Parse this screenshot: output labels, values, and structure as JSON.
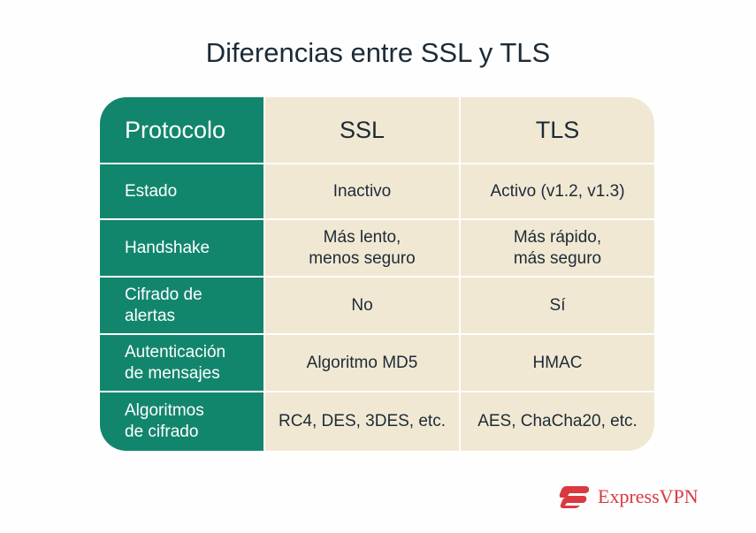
{
  "title": "Diferencias entre SSL y TLS",
  "table": {
    "header": [
      "Protocolo",
      "SSL",
      "TLS"
    ],
    "rows": [
      [
        "Estado",
        "Inactivo",
        "Activo (v1.2, v1.3)"
      ],
      [
        "Handshake",
        "Más lento,\nmenos seguro",
        "Más rápido,\nmás seguro"
      ],
      [
        "Cifrado de\nalertas",
        "No",
        "Sí"
      ],
      [
        "Autenticación\nde mensajes",
        "Algoritmo MD5",
        "HMAC"
      ],
      [
        "Algoritmos\nde cifrado",
        "RC4, DES, 3DES, etc.",
        "AES, ChaCha20, etc."
      ]
    ]
  },
  "colors": {
    "green": "#12866d",
    "beige": "#f1e8d3",
    "brand": "#da3940"
  },
  "logo": {
    "text": "ExpressVPN",
    "icon": "expressvpn-logo-icon"
  }
}
